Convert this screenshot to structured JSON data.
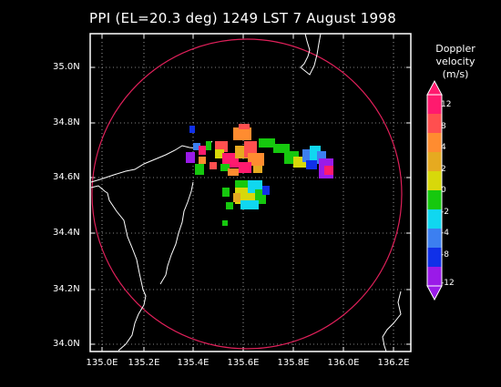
{
  "title": "PPI (EL=20.3 deg)  1249 LST 7 August 1998",
  "y_axis": {
    "labels": [
      "35.0N",
      "34.8N",
      "34.6N",
      "34.4N",
      "34.2N",
      "34.0N"
    ]
  },
  "x_axis": {
    "labels": [
      "135.0E",
      "135.2E",
      "135.4E",
      "135.6E",
      "135.8E",
      "136.0E",
      "136.2E"
    ]
  },
  "colorbar": {
    "title_line1": "Doppler",
    "title_line2": "velocity",
    "title_line3": "(m/s)",
    "tick_labels": [
      "12",
      "8",
      "4",
      "2",
      "0",
      "-2",
      "-4",
      "-8",
      "-12"
    ],
    "colors": [
      "#ff1a6e",
      "#ff4f4f",
      "#ff8c30",
      "#e6aa20",
      "#d8d80a",
      "#16c80e",
      "#10d7f0",
      "#3c7ff0",
      "#1030e8",
      "#9a1ae8"
    ]
  },
  "colors": {
    "range_ring": "#e0205a",
    "coastline": "#ffffff",
    "grid": "#ffffff"
  }
}
